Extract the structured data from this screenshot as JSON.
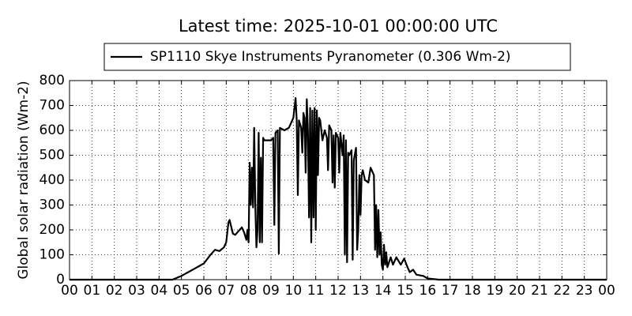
{
  "chart_data": {
    "type": "line",
    "title": "Latest time: 2025-10-01 00:00:00 UTC",
    "y_label": "Global solar radiation (Wm-2)",
    "legend": "upper center",
    "grid": true,
    "x": [
      0,
      4.6,
      5.0,
      5.5,
      6.0,
      6.3,
      6.5,
      6.7,
      6.9,
      7.0,
      7.1,
      7.15,
      7.3,
      7.4,
      7.6,
      7.7,
      7.8,
      7.9,
      7.95,
      8.0,
      8.05,
      8.1,
      8.15,
      8.2,
      8.25,
      8.3,
      8.35,
      8.4,
      8.45,
      8.5,
      8.55,
      8.6,
      8.65,
      8.7,
      9.0,
      9.1,
      9.15,
      9.2,
      9.3,
      9.35,
      9.4,
      9.6,
      9.8,
      10.0,
      10.1,
      10.15,
      10.2,
      10.25,
      10.35,
      10.4,
      10.45,
      10.5,
      10.55,
      10.6,
      10.65,
      10.7,
      10.75,
      10.8,
      10.85,
      10.9,
      10.95,
      11.0,
      11.05,
      11.1,
      11.15,
      11.2,
      11.3,
      11.4,
      11.5,
      11.55,
      11.6,
      11.7,
      11.75,
      11.8,
      11.85,
      11.9,
      12.0,
      12.05,
      12.1,
      12.2,
      12.25,
      12.3,
      12.35,
      12.4,
      12.45,
      12.5,
      12.6,
      12.65,
      12.7,
      12.8,
      12.85,
      12.9,
      12.95,
      13.0,
      13.05,
      13.1,
      13.2,
      13.35,
      13.45,
      13.6,
      13.65,
      13.7,
      13.75,
      13.8,
      13.85,
      13.9,
      13.95,
      14.0,
      14.05,
      14.1,
      14.15,
      14.2,
      14.35,
      14.45,
      14.6,
      14.8,
      14.95,
      15.1,
      15.2,
      15.35,
      15.5,
      15.8,
      16.0,
      16.5,
      17.0,
      24
    ],
    "ylim": [
      0,
      800
    ],
    "yticks": [
      0,
      100,
      200,
      300,
      400,
      500,
      600,
      700,
      800
    ],
    "xlim": [
      0,
      24
    ],
    "xticks": [
      {
        "value": 0,
        "label": "00"
      },
      {
        "value": 1,
        "label": "01"
      },
      {
        "value": 2,
        "label": "02"
      },
      {
        "value": 3,
        "label": "03"
      },
      {
        "value": 4,
        "label": "04"
      },
      {
        "value": 5,
        "label": "05"
      },
      {
        "value": 6,
        "label": "06"
      },
      {
        "value": 7,
        "label": "07"
      },
      {
        "value": 8,
        "label": "08"
      },
      {
        "value": 9,
        "label": "09"
      },
      {
        "value": 10,
        "label": "10"
      },
      {
        "value": 11,
        "label": "11"
      },
      {
        "value": 12,
        "label": "12"
      },
      {
        "value": 13,
        "label": "13"
      },
      {
        "value": 14,
        "label": "14"
      },
      {
        "value": 15,
        "label": "15"
      },
      {
        "value": 16,
        "label": "16"
      },
      {
        "value": 17,
        "label": "17"
      },
      {
        "value": 18,
        "label": "18"
      },
      {
        "value": 19,
        "label": "19"
      },
      {
        "value": 20,
        "label": "20"
      },
      {
        "value": 21,
        "label": "21"
      },
      {
        "value": 22,
        "label": "22"
      },
      {
        "value": 23,
        "label": "23"
      },
      {
        "value": 24,
        "label": "00"
      }
    ],
    "series": [
      {
        "name": "SP1110 Skye Instruments Pyranometer (0.306 Wm-2)",
        "color": "#000000",
        "values": [
          0,
          0,
          15,
          40,
          65,
          100,
          120,
          115,
          130,
          150,
          230,
          240,
          185,
          180,
          200,
          210,
          190,
          160,
          200,
          150,
          470,
          300,
          450,
          290,
          610,
          300,
          130,
          200,
          590,
          150,
          490,
          150,
          570,
          560,
          560,
          570,
          220,
          590,
          600,
          105,
          610,
          600,
          610,
          650,
          730,
          640,
          340,
          640,
          610,
          510,
          670,
          650,
          430,
          725,
          600,
          250,
          690,
          150,
          680,
          250,
          690,
          200,
          680,
          420,
          650,
          640,
          560,
          600,
          570,
          440,
          620,
          600,
          390,
          580,
          370,
          590,
          570,
          430,
          590,
          500,
          580,
          100,
          560,
          70,
          510,
          500,
          520,
          80,
          480,
          530,
          120,
          200,
          420,
          260,
          420,
          440,
          400,
          390,
          450,
          420,
          120,
          300,
          90,
          280,
          100,
          190,
          60,
          40,
          140,
          60,
          110,
          50,
          90,
          60,
          90,
          60,
          85,
          50,
          30,
          40,
          20,
          15,
          5,
          0,
          0,
          0
        ]
      }
    ]
  }
}
